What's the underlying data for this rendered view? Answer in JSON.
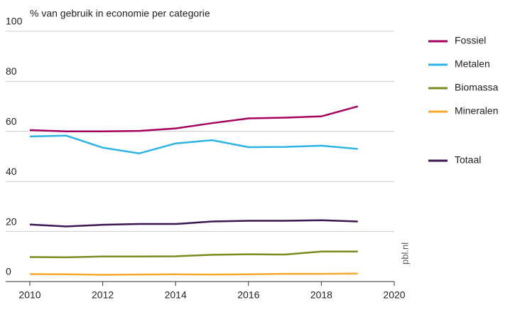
{
  "chart_data": {
    "type": "line",
    "title": "% van gebruik in economie per categorie",
    "annotation": "pbl.nl",
    "x": [
      2010,
      2011,
      2012,
      2013,
      2014,
      2015,
      2016,
      2017,
      2018,
      2019
    ],
    "series": [
      {
        "name": "Fossiel",
        "color": "#a6005f",
        "values": [
          60.5,
          60,
          60,
          60.2,
          61.2,
          63.3,
          65.2,
          65.5,
          66,
          70
        ]
      },
      {
        "name": "Metalen",
        "color": "#2bb3e6",
        "values": [
          58,
          58.3,
          53.5,
          51.2,
          55.2,
          56.5,
          53.7,
          53.8,
          54.3,
          53
        ]
      },
      {
        "name": "Biomassa",
        "color": "#7b8a1e",
        "values": [
          9.8,
          9.7,
          10,
          10,
          10.1,
          10.7,
          10.9,
          10.8,
          12,
          12
        ]
      },
      {
        "name": "Mineralen",
        "color": "#f5a82a",
        "values": [
          3,
          2.9,
          2.7,
          2.8,
          2.9,
          2.8,
          2.9,
          3.1,
          3.1,
          3.2
        ]
      },
      {
        "name": "Totaal",
        "color": "#3b1650",
        "values": [
          22.8,
          22,
          22.7,
          23,
          23,
          24,
          24.3,
          24.3,
          24.5,
          24
        ]
      }
    ],
    "xlim": [
      2010,
      2020
    ],
    "xticks": [
      2010,
      2012,
      2014,
      2016,
      2018,
      2020
    ],
    "ylim": [
      0,
      100
    ],
    "yticks": [
      0,
      20,
      40,
      60,
      80,
      100
    ],
    "grid": true,
    "legend": "right"
  }
}
